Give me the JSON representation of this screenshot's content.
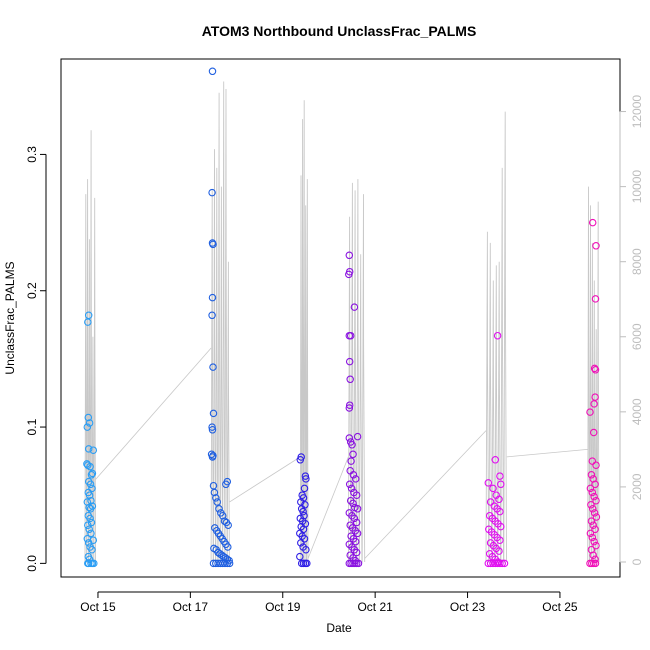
{
  "chart_data": {
    "type": "scatter",
    "title": "ATOM3 Northbound UnclassFrac_PALMS",
    "xlabel": "Date",
    "ylabel": "UnclassFrac_PALMS",
    "ylabel_right": "",
    "x_tick_labels": [
      "Oct 15",
      "Oct 17",
      "Oct 19",
      "Oct 21",
      "Oct 23",
      "Oct 25"
    ],
    "x_tick_days": [
      15,
      17,
      19,
      21,
      23,
      25
    ],
    "xlim_days": [
      14.2,
      26.3
    ],
    "ylim": [
      -0.01,
      0.37
    ],
    "y_ticks": [
      0.0,
      0.1,
      0.2,
      0.3
    ],
    "y_tick_labels": [
      "0.0",
      "0.1",
      "0.2",
      "0.3"
    ],
    "y2lim": [
      -400,
      13400
    ],
    "y2_ticks": [
      0,
      2000,
      4000,
      6000,
      8000,
      10000,
      12000
    ],
    "y2_tick_labels": [
      "0",
      "2000",
      "4000",
      "6000",
      "8000",
      "10000",
      "12000"
    ],
    "grid": false,
    "legend": "none",
    "altitude_color": "#c8c8c8",
    "series": [
      {
        "flight": 1,
        "color": "#2a9df4",
        "day_range": [
          14.75,
          14.95
        ],
        "points": [
          [
            14.78,
            0.177
          ],
          [
            14.8,
            0.182
          ],
          [
            14.79,
            0.107
          ],
          [
            14.77,
            0.1
          ],
          [
            14.82,
            0.103
          ],
          [
            14.8,
            0.084
          ],
          [
            14.9,
            0.083
          ],
          [
            14.76,
            0.073
          ],
          [
            14.78,
            0.072
          ],
          [
            14.83,
            0.071
          ],
          [
            14.86,
            0.065
          ],
          [
            14.88,
            0.066
          ],
          [
            14.8,
            0.06
          ],
          [
            14.84,
            0.058
          ],
          [
            14.87,
            0.055
          ],
          [
            14.79,
            0.052
          ],
          [
            14.82,
            0.05
          ],
          [
            14.85,
            0.046
          ],
          [
            14.77,
            0.045
          ],
          [
            14.81,
            0.041
          ],
          [
            14.84,
            0.04
          ],
          [
            14.88,
            0.042
          ],
          [
            14.79,
            0.035
          ],
          [
            14.83,
            0.033
          ],
          [
            14.86,
            0.03
          ],
          [
            14.78,
            0.028
          ],
          [
            14.81,
            0.025
          ],
          [
            14.85,
            0.022
          ],
          [
            14.9,
            0.017
          ],
          [
            14.77,
            0.018
          ],
          [
            14.8,
            0.015
          ],
          [
            14.83,
            0.012
          ],
          [
            14.87,
            0.01
          ],
          [
            14.79,
            0.005
          ],
          [
            14.82,
            0.003
          ],
          [
            14.85,
            0.0
          ],
          [
            14.88,
            0.0
          ],
          [
            14.91,
            0.0
          ],
          [
            14.78,
            0.0
          ],
          [
            14.8,
            0.0
          ]
        ]
      },
      {
        "flight": 2,
        "color": "#1f5fe0",
        "day_range": [
          17.45,
          17.85
        ],
        "points": [
          [
            17.48,
            0.361
          ],
          [
            17.47,
            0.272
          ],
          [
            17.48,
            0.235
          ],
          [
            17.49,
            0.234
          ],
          [
            17.48,
            0.195
          ],
          [
            17.47,
            0.182
          ],
          [
            17.49,
            0.144
          ],
          [
            17.5,
            0.11
          ],
          [
            17.47,
            0.1
          ],
          [
            17.48,
            0.098
          ],
          [
            17.46,
            0.08
          ],
          [
            17.49,
            0.079
          ],
          [
            17.48,
            0.078
          ],
          [
            17.8,
            0.06
          ],
          [
            17.77,
            0.058
          ],
          [
            17.5,
            0.057
          ],
          [
            17.52,
            0.052
          ],
          [
            17.55,
            0.048
          ],
          [
            17.58,
            0.045
          ],
          [
            17.62,
            0.04
          ],
          [
            17.66,
            0.037
          ],
          [
            17.7,
            0.035
          ],
          [
            17.74,
            0.031
          ],
          [
            17.78,
            0.03
          ],
          [
            17.82,
            0.028
          ],
          [
            17.53,
            0.026
          ],
          [
            17.57,
            0.024
          ],
          [
            17.61,
            0.022
          ],
          [
            17.65,
            0.02
          ],
          [
            17.69,
            0.018
          ],
          [
            17.73,
            0.016
          ],
          [
            17.77,
            0.014
          ],
          [
            17.81,
            0.012
          ],
          [
            17.51,
            0.011
          ],
          [
            17.56,
            0.01
          ],
          [
            17.6,
            0.008
          ],
          [
            17.64,
            0.007
          ],
          [
            17.68,
            0.006
          ],
          [
            17.72,
            0.005
          ],
          [
            17.76,
            0.004
          ],
          [
            17.8,
            0.003
          ],
          [
            17.84,
            0.002
          ],
          [
            17.5,
            0.0
          ],
          [
            17.55,
            0.0
          ],
          [
            17.6,
            0.0
          ],
          [
            17.65,
            0.0
          ],
          [
            17.7,
            0.0
          ],
          [
            17.75,
            0.0
          ],
          [
            17.8,
            0.0
          ],
          [
            17.85,
            0.0
          ]
        ]
      },
      {
        "flight": 3,
        "color": "#2f1fe6",
        "day_range": [
          19.35,
          19.55
        ],
        "points": [
          [
            19.4,
            0.078
          ],
          [
            19.38,
            0.076
          ],
          [
            19.49,
            0.064
          ],
          [
            19.5,
            0.062
          ],
          [
            19.47,
            0.055
          ],
          [
            19.42,
            0.05
          ],
          [
            19.45,
            0.048
          ],
          [
            19.39,
            0.045
          ],
          [
            19.48,
            0.043
          ],
          [
            19.41,
            0.04
          ],
          [
            19.44,
            0.038
          ],
          [
            19.46,
            0.035
          ],
          [
            19.38,
            0.033
          ],
          [
            19.43,
            0.031
          ],
          [
            19.49,
            0.029
          ],
          [
            19.4,
            0.027
          ],
          [
            19.45,
            0.025
          ],
          [
            19.37,
            0.022
          ],
          [
            19.42,
            0.02
          ],
          [
            19.47,
            0.018
          ],
          [
            19.39,
            0.015
          ],
          [
            19.44,
            0.012
          ],
          [
            19.5,
            0.01
          ],
          [
            19.37,
            0.005
          ],
          [
            19.41,
            0.0
          ],
          [
            19.45,
            0.0
          ],
          [
            19.49,
            0.0
          ],
          [
            19.52,
            0.0
          ]
        ]
      },
      {
        "flight": 4,
        "color": "#8a12e0",
        "day_range": [
          20.42,
          20.78
        ],
        "points": [
          [
            20.44,
            0.226
          ],
          [
            20.45,
            0.214
          ],
          [
            20.43,
            0.212
          ],
          [
            20.55,
            0.188
          ],
          [
            20.44,
            0.167
          ],
          [
            20.47,
            0.167
          ],
          [
            20.45,
            0.148
          ],
          [
            20.46,
            0.135
          ],
          [
            20.45,
            0.116
          ],
          [
            20.44,
            0.114
          ],
          [
            20.62,
            0.093
          ],
          [
            20.44,
            0.092
          ],
          [
            20.47,
            0.089
          ],
          [
            20.5,
            0.087
          ],
          [
            20.52,
            0.08
          ],
          [
            20.48,
            0.075
          ],
          [
            20.46,
            0.068
          ],
          [
            20.53,
            0.065
          ],
          [
            20.58,
            0.062
          ],
          [
            20.45,
            0.058
          ],
          [
            20.49,
            0.055
          ],
          [
            20.54,
            0.052
          ],
          [
            20.6,
            0.05
          ],
          [
            20.47,
            0.046
          ],
          [
            20.52,
            0.044
          ],
          [
            20.56,
            0.041
          ],
          [
            20.62,
            0.04
          ],
          [
            20.44,
            0.037
          ],
          [
            20.5,
            0.035
          ],
          [
            20.55,
            0.033
          ],
          [
            20.6,
            0.03
          ],
          [
            20.46,
            0.028
          ],
          [
            20.51,
            0.026
          ],
          [
            20.57,
            0.024
          ],
          [
            20.62,
            0.022
          ],
          [
            20.48,
            0.02
          ],
          [
            20.53,
            0.018
          ],
          [
            20.58,
            0.016
          ],
          [
            20.44,
            0.014
          ],
          [
            20.5,
            0.012
          ],
          [
            20.55,
            0.01
          ],
          [
            20.6,
            0.008
          ],
          [
            20.46,
            0.006
          ],
          [
            20.52,
            0.004
          ],
          [
            20.57,
            0.002
          ],
          [
            20.44,
            0.0
          ],
          [
            20.48,
            0.0
          ],
          [
            20.52,
            0.0
          ],
          [
            20.56,
            0.0
          ],
          [
            20.6,
            0.0
          ],
          [
            20.64,
            0.0
          ]
        ]
      },
      {
        "flight": 5,
        "color": "#e010f0",
        "day_range": [
          23.4,
          23.85
        ],
        "points": [
          [
            23.65,
            0.167
          ],
          [
            23.7,
            0.064
          ],
          [
            23.45,
            0.059
          ],
          [
            23.72,
            0.058
          ],
          [
            23.6,
            0.076
          ],
          [
            23.55,
            0.055
          ],
          [
            23.62,
            0.05
          ],
          [
            23.68,
            0.047
          ],
          [
            23.5,
            0.045
          ],
          [
            23.58,
            0.042
          ],
          [
            23.64,
            0.04
          ],
          [
            23.7,
            0.038
          ],
          [
            23.48,
            0.035
          ],
          [
            23.54,
            0.033
          ],
          [
            23.6,
            0.031
          ],
          [
            23.66,
            0.029
          ],
          [
            23.72,
            0.027
          ],
          [
            23.46,
            0.025
          ],
          [
            23.52,
            0.023
          ],
          [
            23.58,
            0.021
          ],
          [
            23.64,
            0.019
          ],
          [
            23.7,
            0.017
          ],
          [
            23.5,
            0.015
          ],
          [
            23.56,
            0.013
          ],
          [
            23.62,
            0.011
          ],
          [
            23.68,
            0.009
          ],
          [
            23.48,
            0.007
          ],
          [
            23.54,
            0.005
          ],
          [
            23.6,
            0.003
          ],
          [
            23.66,
            0.001
          ],
          [
            23.45,
            0.0
          ],
          [
            23.5,
            0.0
          ],
          [
            23.55,
            0.0
          ],
          [
            23.6,
            0.0
          ],
          [
            23.65,
            0.0
          ],
          [
            23.7,
            0.0
          ],
          [
            23.75,
            0.0
          ],
          [
            23.8,
            0.0
          ]
        ]
      },
      {
        "flight": 6,
        "color": "#f010b8",
        "day_range": [
          25.6,
          25.85
        ],
        "points": [
          [
            25.71,
            0.25
          ],
          [
            25.78,
            0.233
          ],
          [
            25.77,
            0.194
          ],
          [
            25.75,
            0.143
          ],
          [
            25.77,
            0.142
          ],
          [
            25.76,
            0.122
          ],
          [
            25.74,
            0.117
          ],
          [
            25.65,
            0.111
          ],
          [
            25.73,
            0.096
          ],
          [
            25.7,
            0.075
          ],
          [
            25.78,
            0.072
          ],
          [
            25.68,
            0.065
          ],
          [
            25.72,
            0.062
          ],
          [
            25.76,
            0.058
          ],
          [
            25.66,
            0.055
          ],
          [
            25.7,
            0.052
          ],
          [
            25.74,
            0.049
          ],
          [
            25.78,
            0.046
          ],
          [
            25.67,
            0.043
          ],
          [
            25.71,
            0.04
          ],
          [
            25.75,
            0.037
          ],
          [
            25.79,
            0.034
          ],
          [
            25.68,
            0.031
          ],
          [
            25.72,
            0.028
          ],
          [
            25.76,
            0.025
          ],
          [
            25.66,
            0.022
          ],
          [
            25.7,
            0.019
          ],
          [
            25.74,
            0.016
          ],
          [
            25.78,
            0.013
          ],
          [
            25.68,
            0.01
          ],
          [
            25.72,
            0.006
          ],
          [
            25.76,
            0.003
          ],
          [
            25.65,
            0.0
          ],
          [
            25.69,
            0.0
          ],
          [
            25.73,
            0.0
          ],
          [
            25.77,
            0.0
          ]
        ]
      }
    ],
    "altitude_series": {
      "name": "",
      "flight_spikes": [
        {
          "start": 14.72,
          "end": 14.95,
          "peaks": [
            9800,
            10200,
            8600,
            11500,
            6000,
            9700
          ]
        },
        {
          "start": 17.45,
          "end": 17.85,
          "peaks": [
            9900,
            11000,
            10500,
            12500,
            10000,
            12800,
            12600,
            8000
          ]
        },
        {
          "start": 19.38,
          "end": 19.55,
          "peaks": [
            10300,
            11800,
            12300,
            9500,
            10200
          ]
        },
        {
          "start": 20.42,
          "end": 20.78,
          "peaks": [
            9200,
            10100,
            9900,
            10200,
            8200,
            9800
          ]
        },
        {
          "start": 23.4,
          "end": 23.85,
          "peaks": [
            8800,
            8500,
            7500,
            7900,
            8000,
            10500,
            12000
          ]
        },
        {
          "start": 25.6,
          "end": 25.85,
          "peaks": [
            10000,
            9500,
            8500,
            7500,
            6200,
            9600
          ]
        }
      ],
      "connectors": [
        [
          14.95,
          2200,
          17.45,
          5700
        ],
        [
          17.85,
          1600,
          19.38,
          2800
        ],
        [
          19.55,
          100,
          20.42,
          2800
        ],
        [
          20.78,
          100,
          23.4,
          3500
        ],
        [
          23.85,
          2800,
          25.6,
          3000
        ]
      ]
    }
  }
}
